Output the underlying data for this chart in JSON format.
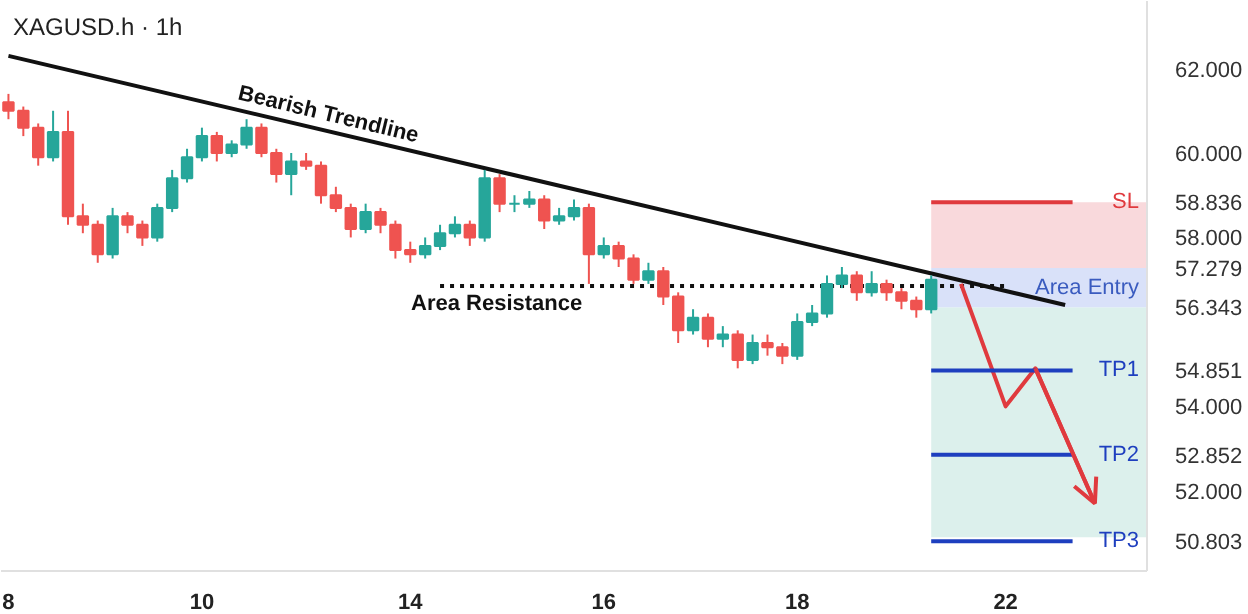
{
  "chart_data": {
    "type": "candlestick",
    "title": "XAGUSD.h · 1h",
    "categories": [
      "8",
      null,
      null,
      null,
      null,
      null,
      null,
      null,
      null,
      null,
      null,
      null,
      null,
      "10",
      null,
      null,
      null,
      null,
      null,
      null,
      null,
      null,
      null,
      null,
      null,
      null,
      null,
      "14",
      null,
      null,
      null,
      null,
      null,
      null,
      null,
      null,
      null,
      null,
      null,
      null,
      "16",
      null,
      null,
      null,
      null,
      null,
      null,
      null,
      null,
      null,
      null,
      null,
      null,
      "18",
      null,
      null,
      null,
      null,
      null,
      null,
      null,
      null,
      null,
      null,
      null,
      null,
      null,
      "22",
      null,
      null,
      null,
      null,
      null,
      null,
      null,
      null,
      null
    ],
    "ohlc": [
      [
        61.2,
        61.4,
        60.8,
        61.0
      ],
      [
        61.0,
        61.1,
        60.4,
        60.6
      ],
      [
        60.6,
        60.7,
        59.7,
        59.9
      ],
      [
        59.9,
        61.0,
        59.8,
        60.5
      ],
      [
        60.5,
        61.0,
        58.3,
        58.5
      ],
      [
        58.5,
        58.8,
        58.1,
        58.3
      ],
      [
        58.3,
        58.4,
        57.4,
        57.6
      ],
      [
        57.6,
        58.7,
        57.5,
        58.5
      ],
      [
        58.5,
        58.6,
        58.1,
        58.3
      ],
      [
        58.3,
        58.4,
        57.8,
        58.0
      ],
      [
        58.0,
        58.8,
        57.9,
        58.7
      ],
      [
        58.7,
        59.6,
        58.6,
        59.4
      ],
      [
        59.4,
        60.1,
        59.3,
        59.9
      ],
      [
        59.9,
        60.6,
        59.8,
        60.4
      ],
      [
        60.4,
        60.5,
        59.8,
        60.0
      ],
      [
        60.0,
        60.3,
        59.9,
        60.2
      ],
      [
        60.2,
        60.8,
        60.1,
        60.6
      ],
      [
        60.6,
        60.7,
        59.9,
        60.0
      ],
      [
        60.0,
        60.1,
        59.3,
        59.5
      ],
      [
        59.5,
        60.0,
        59.0,
        59.8
      ],
      [
        59.8,
        60.0,
        59.6,
        59.7
      ],
      [
        59.7,
        59.8,
        58.8,
        59.0
      ],
      [
        59.0,
        59.2,
        58.6,
        58.7
      ],
      [
        58.7,
        58.8,
        58.0,
        58.2
      ],
      [
        58.2,
        58.8,
        58.1,
        58.6
      ],
      [
        58.6,
        58.7,
        58.1,
        58.3
      ],
      [
        58.3,
        58.4,
        57.5,
        57.7
      ],
      [
        57.7,
        57.9,
        57.4,
        57.6
      ],
      [
        57.6,
        58.0,
        57.5,
        57.8
      ],
      [
        57.8,
        58.3,
        57.7,
        58.1
      ],
      [
        58.1,
        58.5,
        58.0,
        58.3
      ],
      [
        58.3,
        58.4,
        57.8,
        58.0
      ],
      [
        58.0,
        59.6,
        57.9,
        59.4
      ],
      [
        59.4,
        59.5,
        58.6,
        58.8
      ],
      [
        58.8,
        59.0,
        58.6,
        58.8
      ],
      [
        58.8,
        59.1,
        58.7,
        58.9
      ],
      [
        58.9,
        59.0,
        58.2,
        58.4
      ],
      [
        58.4,
        58.7,
        58.3,
        58.5
      ],
      [
        58.5,
        58.9,
        58.4,
        58.7
      ],
      [
        58.7,
        58.8,
        56.9,
        57.6
      ],
      [
        57.6,
        58.0,
        57.5,
        57.8
      ],
      [
        57.8,
        57.9,
        57.3,
        57.5
      ],
      [
        57.5,
        57.6,
        56.9,
        57.0
      ],
      [
        57.0,
        57.4,
        56.9,
        57.2
      ],
      [
        57.2,
        57.3,
        56.4,
        56.6
      ],
      [
        56.6,
        56.7,
        55.5,
        55.8
      ],
      [
        55.8,
        56.3,
        55.7,
        56.1
      ],
      [
        56.1,
        56.2,
        55.4,
        55.6
      ],
      [
        55.6,
        55.9,
        55.4,
        55.7
      ],
      [
        55.7,
        55.8,
        54.9,
        55.1
      ],
      [
        55.1,
        55.7,
        55.0,
        55.5
      ],
      [
        55.5,
        55.7,
        55.2,
        55.4
      ],
      [
        55.4,
        55.5,
        55.0,
        55.2
      ],
      [
        55.2,
        56.2,
        55.1,
        56.0
      ],
      [
        56.0,
        56.4,
        55.9,
        56.2
      ],
      [
        56.2,
        57.1,
        56.1,
        56.9
      ],
      [
        56.9,
        57.3,
        56.8,
        57.1
      ],
      [
        57.1,
        57.2,
        56.5,
        56.7
      ],
      [
        56.7,
        57.2,
        56.6,
        56.9
      ],
      [
        56.9,
        57.0,
        56.5,
        56.7
      ],
      [
        56.7,
        56.8,
        56.3,
        56.5
      ],
      [
        56.5,
        56.6,
        56.1,
        56.3
      ],
      [
        56.3,
        57.1,
        56.2,
        57.0
      ],
      null,
      null,
      null,
      null,
      null,
      null,
      null,
      null,
      null,
      null,
      null,
      null,
      null,
      null
    ],
    "colors": [
      "#ef5350",
      "#ef5350",
      "#ef5350",
      "#26a69a",
      "#ef5350",
      "#ef5350",
      "#ef5350",
      "#26a69a",
      "#ef5350",
      "#ef5350",
      "#26a69a",
      "#26a69a",
      "#26a69a",
      "#26a69a",
      "#ef5350",
      "#26a69a",
      "#26a69a",
      "#ef5350",
      "#ef5350",
      "#26a69a",
      "#ef5350",
      "#ef5350",
      "#ef5350",
      "#ef5350",
      "#26a69a",
      "#ef5350",
      "#ef5350",
      "#ef5350",
      "#26a69a",
      "#26a69a",
      "#26a69a",
      "#ef5350",
      "#26a69a",
      "#ef5350",
      "#26a69a",
      "#26a69a",
      "#ef5350",
      "#26a69a",
      "#26a69a",
      "#ef5350",
      "#26a69a",
      "#ef5350",
      "#ef5350",
      "#26a69a",
      "#ef5350",
      "#ef5350",
      "#26a69a",
      "#ef5350",
      "#26a69a",
      "#ef5350",
      "#26a69a",
      "#ef5350",
      "#ef5350",
      "#26a69a",
      "#26a69a",
      "#26a69a",
      "#26a69a",
      "#ef5350",
      "#26a69a",
      "#ef5350",
      "#ef5350",
      "#ef5350",
      "#26a69a",
      null,
      null,
      null,
      null,
      null,
      null,
      null,
      null,
      null,
      null,
      null,
      null,
      null,
      null
    ],
    "series": [
      {
        "type": "line",
        "color": "#111111",
        "values": [
          62.3,
          null,
          null,
          null,
          null,
          null,
          null,
          null,
          null,
          null,
          null,
          null,
          null,
          null,
          null,
          null,
          null,
          null,
          null,
          null,
          null,
          null,
          null,
          null,
          null,
          null,
          null,
          null,
          null,
          null,
          null,
          null,
          null,
          null,
          null,
          null,
          null,
          null,
          null,
          null,
          null,
          null,
          null,
          null,
          null,
          null,
          null,
          null,
          null,
          null,
          null,
          null,
          null,
          null,
          null,
          null,
          null,
          null,
          null,
          null,
          null,
          null,
          null,
          null,
          null,
          null,
          null,
          null,
          null,
          null,
          null,
          56.4,
          null,
          null,
          null,
          null,
          null
        ]
      },
      {
        "type": "line",
        "color": "#111111",
        "line_style": "dotted",
        "values": [
          null,
          null,
          null,
          null,
          null,
          null,
          null,
          null,
          null,
          null,
          null,
          null,
          null,
          null,
          null,
          null,
          null,
          null,
          null,
          null,
          null,
          null,
          null,
          null,
          null,
          null,
          null,
          null,
          null,
          56.85,
          null,
          null,
          null,
          null,
          null,
          null,
          null,
          null,
          null,
          null,
          null,
          null,
          null,
          null,
          null,
          null,
          null,
          null,
          null,
          null,
          null,
          null,
          null,
          null,
          null,
          null,
          null,
          null,
          null,
          null,
          null,
          null,
          null,
          null,
          null,
          null,
          null,
          56.85,
          null,
          null,
          null,
          null,
          null,
          null,
          null,
          null,
          null
        ]
      },
      {
        "type": "line",
        "color": "#e03a3e",
        "values": [
          null,
          null,
          null,
          null,
          null,
          null,
          null,
          null,
          null,
          null,
          null,
          null,
          null,
          null,
          null,
          null,
          null,
          null,
          null,
          null,
          null,
          null,
          null,
          null,
          null,
          null,
          null,
          null,
          null,
          null,
          null,
          null,
          null,
          null,
          null,
          null,
          null,
          null,
          null,
          null,
          null,
          null,
          null,
          null,
          null,
          null,
          null,
          null,
          null,
          null,
          null,
          null,
          null,
          null,
          null,
          null,
          null,
          null,
          null,
          null,
          null,
          null,
          null,
          null,
          56.9,
          null,
          null,
          54.0,
          null,
          54.9,
          null,
          null,
          null,
          51.7,
          null,
          null,
          null
        ]
      }
    ],
    "bands": [
      {
        "axis": "y",
        "from": 57.279,
        "to": 58.836,
        "color": "#f8d0d3"
      },
      {
        "axis": "y",
        "from": 56.343,
        "to": 57.279,
        "color": "#cfdaf7",
        "label": "Area Entry"
      },
      {
        "axis": "y",
        "from": 50.9,
        "to": 56.343,
        "color": "#d3ece7"
      }
    ],
    "ref_lines": [
      {
        "axis": "y",
        "value": 58.836,
        "label": "SL",
        "color": "#e03a3e"
      },
      {
        "axis": "y",
        "value": 54.851,
        "label": "TP1",
        "color": "#1e3fbf"
      },
      {
        "axis": "y",
        "value": 52.852,
        "label": "TP2",
        "color": "#1e3fbf"
      },
      {
        "axis": "y",
        "value": 50.803,
        "label": "TP3",
        "color": "#1e3fbf"
      }
    ],
    "annotations": [
      "Bearish Trendline",
      "Area Resistance"
    ],
    "ylim": [
      50.1,
      63.6
    ],
    "yticks": [
      {
        "value": 50.803,
        "label": "50.803"
      },
      {
        "value": 52,
        "label": "52.000"
      },
      {
        "value": 52.852,
        "label": "52.852"
      },
      {
        "value": 54,
        "label": "54.000"
      },
      {
        "value": 54.851,
        "label": "54.851"
      },
      {
        "value": 56.343,
        "label": "56.343"
      },
      {
        "value": 57.279,
        "label": "57.279"
      },
      {
        "value": 58,
        "label": "58.000"
      },
      {
        "value": 58.836,
        "label": "58.836"
      },
      {
        "value": 60,
        "label": "60.000"
      },
      {
        "value": 62,
        "label": "62.000"
      }
    ],
    "grid": false
  }
}
